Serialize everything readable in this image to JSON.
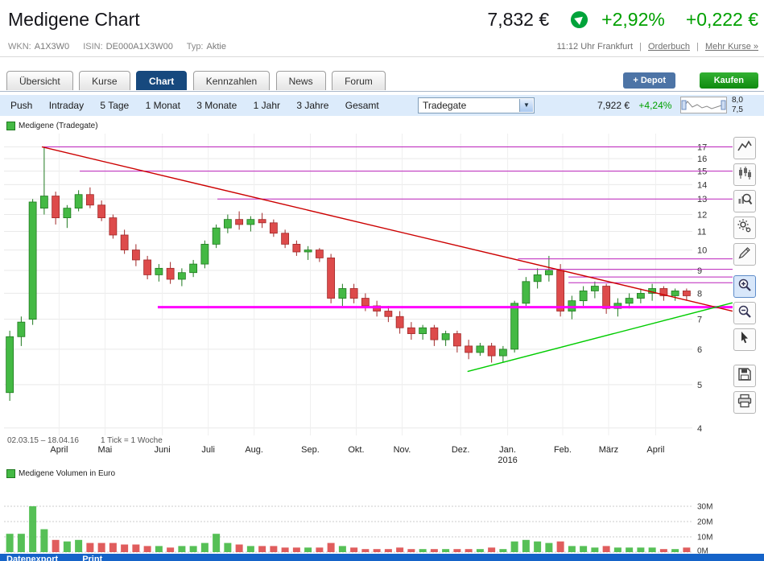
{
  "header": {
    "title": "Medigene Chart",
    "price": "7,832 €",
    "change_pct": "+2,92%",
    "change_abs": "+0,222 €",
    "wkn_label": "WKN:",
    "wkn_value": "A1X3W0",
    "isin_label": "ISIN:",
    "isin_value": "DE000A1X3W00",
    "typ_label": "Typ:",
    "typ_value": "Aktie",
    "time": "11:12 Uhr Frankfurt",
    "separator": "|",
    "orderbuch_link": "Orderbuch",
    "mehr_kurse_link": "Mehr Kurse »"
  },
  "tabs": {
    "items": [
      {
        "label": "Übersicht",
        "active": false
      },
      {
        "label": "Kurse",
        "active": false
      },
      {
        "label": "Chart",
        "active": true
      },
      {
        "label": "Kennzahlen",
        "active": false
      },
      {
        "label": "News",
        "active": false
      },
      {
        "label": "Forum",
        "active": false
      }
    ],
    "depot_label": "+ Depot",
    "kaufen_label": "Kaufen"
  },
  "period": {
    "items": [
      "Push",
      "Intraday",
      "5 Tage",
      "1 Monat",
      "3 Monate",
      "1 Jahr",
      "3 Jahre",
      "Gesamt"
    ],
    "exchange_selected": "Tradegate",
    "quote_price": "7,922 €",
    "quote_change": "+4,24%",
    "range_high": "8,0",
    "range_low": "7,5"
  },
  "chart": {
    "legend": "Medigene (Tradegate)"
  },
  "volume": {
    "legend": "Medigene Volumen in Euro",
    "yticks": [
      {
        "v": 0,
        "label": "0M"
      },
      {
        "v": 10,
        "label": "10M"
      },
      {
        "v": 20,
        "label": "20M"
      },
      {
        "v": 30,
        "label": "30M"
      }
    ]
  },
  "chart_data": {
    "type": "candlestick",
    "title": "Medigene (Tradegate)",
    "scale": "log",
    "period": "1 Tick = 1 Woche",
    "range_text": "02.03.15 – 18.04.16",
    "tick_text": "1 Tick = 1 Woche",
    "y_domain": [
      3.85,
      18.2
    ],
    "y_ticks": [
      4,
      5,
      6,
      7,
      8,
      9,
      10,
      11,
      12,
      13,
      14,
      15,
      16,
      17
    ],
    "x_labels": [
      {
        "t": "April",
        "i": 4.8
      },
      {
        "t": "Mai",
        "i": 8.8
      },
      {
        "t": "Juni",
        "i": 13.8
      },
      {
        "t": "Juli",
        "i": 17.8
      },
      {
        "t": "Aug.",
        "i": 21.8
      },
      {
        "t": "Sep.",
        "i": 26.7
      },
      {
        "t": "Okt.",
        "i": 30.7
      },
      {
        "t": "Nov.",
        "i": 34.7
      },
      {
        "t": "Dez.",
        "i": 39.8
      },
      {
        "t": "Jan.",
        "i": 43.9,
        "sub": "2016"
      },
      {
        "t": "Feb.",
        "i": 48.7
      },
      {
        "t": "März",
        "i": 52.7
      },
      {
        "t": "April",
        "i": 56.8
      }
    ],
    "candles": [
      [
        4.8,
        6.6,
        4.6,
        6.4,
        12
      ],
      [
        6.4,
        7.1,
        6.1,
        6.9,
        12
      ],
      [
        7.0,
        13.0,
        6.8,
        12.8,
        30
      ],
      [
        12.4,
        17.0,
        12.0,
        13.2,
        15
      ],
      [
        13.2,
        13.5,
        11.4,
        11.8,
        8
      ],
      [
        11.8,
        12.6,
        11.2,
        12.4,
        7
      ],
      [
        12.4,
        13.6,
        12.2,
        13.3,
        8
      ],
      [
        13.3,
        13.8,
        12.4,
        12.6,
        6
      ],
      [
        12.6,
        12.9,
        11.6,
        11.8,
        6
      ],
      [
        11.8,
        12.0,
        10.6,
        10.8,
        6
      ],
      [
        10.8,
        11.1,
        9.8,
        10.0,
        5
      ],
      [
        10.0,
        10.3,
        9.2,
        9.5,
        5
      ],
      [
        9.5,
        9.7,
        8.6,
        8.8,
        4
      ],
      [
        8.8,
        9.3,
        8.5,
        9.1,
        4
      ],
      [
        9.1,
        9.4,
        8.4,
        8.6,
        3
      ],
      [
        8.6,
        9.1,
        8.3,
        8.9,
        4
      ],
      [
        8.9,
        9.5,
        8.7,
        9.3,
        4
      ],
      [
        9.3,
        10.5,
        9.1,
        10.3,
        6
      ],
      [
        10.3,
        11.4,
        10.1,
        11.2,
        12
      ],
      [
        11.2,
        12.0,
        10.9,
        11.7,
        6
      ],
      [
        11.7,
        12.2,
        11.1,
        11.4,
        5
      ],
      [
        11.4,
        11.9,
        11.0,
        11.7,
        4
      ],
      [
        11.7,
        12.1,
        11.2,
        11.5,
        4
      ],
      [
        11.5,
        11.7,
        10.7,
        10.9,
        4
      ],
      [
        10.9,
        11.1,
        10.1,
        10.3,
        3
      ],
      [
        10.3,
        10.5,
        9.7,
        9.9,
        3
      ],
      [
        9.9,
        10.2,
        9.5,
        10.0,
        3
      ],
      [
        10.0,
        10.1,
        9.4,
        9.6,
        3
      ],
      [
        9.6,
        9.8,
        7.6,
        7.8,
        6
      ],
      [
        7.8,
        8.4,
        7.5,
        8.2,
        4
      ],
      [
        8.2,
        8.4,
        7.6,
        7.8,
        3
      ],
      [
        7.8,
        8.0,
        7.3,
        7.5,
        2
      ],
      [
        7.5,
        7.7,
        7.1,
        7.3,
        2
      ],
      [
        7.3,
        7.5,
        6.9,
        7.1,
        2
      ],
      [
        7.1,
        7.3,
        6.5,
        6.7,
        3
      ],
      [
        6.7,
        6.9,
        6.3,
        6.5,
        2
      ],
      [
        6.5,
        6.8,
        6.3,
        6.7,
        2
      ],
      [
        6.7,
        6.8,
        6.1,
        6.3,
        2
      ],
      [
        6.3,
        6.6,
        6.1,
        6.5,
        2
      ],
      [
        6.5,
        6.6,
        5.9,
        6.1,
        2
      ],
      [
        6.1,
        6.3,
        5.7,
        5.9,
        2
      ],
      [
        5.9,
        6.2,
        5.8,
        6.1,
        2
      ],
      [
        6.1,
        6.2,
        5.6,
        5.8,
        3
      ],
      [
        5.8,
        6.1,
        5.6,
        6.0,
        2
      ],
      [
        6.0,
        7.7,
        5.9,
        7.6,
        7
      ],
      [
        7.6,
        8.7,
        7.5,
        8.5,
        8
      ],
      [
        8.5,
        9.1,
        8.2,
        8.8,
        7
      ],
      [
        8.8,
        9.7,
        8.5,
        9.0,
        6
      ],
      [
        9.0,
        9.3,
        7.1,
        7.3,
        7
      ],
      [
        7.3,
        7.9,
        7.0,
        7.7,
        4
      ],
      [
        7.7,
        8.3,
        7.5,
        8.1,
        4
      ],
      [
        8.1,
        8.5,
        7.8,
        8.3,
        3
      ],
      [
        8.3,
        8.4,
        7.2,
        7.4,
        4
      ],
      [
        7.4,
        7.8,
        7.1,
        7.6,
        3
      ],
      [
        7.6,
        8.0,
        7.4,
        7.8,
        3
      ],
      [
        7.8,
        8.2,
        7.6,
        8.0,
        3
      ],
      [
        8.0,
        8.4,
        7.7,
        8.2,
        3
      ],
      [
        8.2,
        8.3,
        7.7,
        7.9,
        2
      ],
      [
        7.9,
        8.2,
        7.7,
        8.1,
        2
      ],
      [
        8.1,
        8.2,
        7.7,
        7.9,
        3
      ]
    ],
    "volume_unit": "M",
    "support_resistance_lines": [
      {
        "price": 17.0,
        "from_idx": 3.3,
        "thick": false
      },
      {
        "price": 15.0,
        "from_idx": 6.6,
        "thick": false
      },
      {
        "price": 13.0,
        "from_idx": 18.6,
        "thick": false
      },
      {
        "price": 9.55,
        "from_idx": 44.8,
        "thick": false
      },
      {
        "price": 9.05,
        "from_idx": 44.8,
        "thick": false
      },
      {
        "price": 8.7,
        "from_idx": 49.2,
        "thick": false
      },
      {
        "price": 8.45,
        "from_idx": 49.2,
        "thick": false
      },
      {
        "price": 7.45,
        "from_idx": 13.4,
        "thick": true
      }
    ],
    "trendlines": [
      {
        "from_idx": 3.3,
        "from_price": 17.0,
        "to_idx": 63.5,
        "to_price": 7.3,
        "color": "#cc0000"
      },
      {
        "from_idx": 40.4,
        "from_price": 5.35,
        "to_idx": 63.5,
        "to_price": 7.62,
        "color": "#00cc00"
      }
    ],
    "colors": {
      "up": "#44b944",
      "up_border": "#1f7a1f",
      "down": "#dd4b4b",
      "down_border": "#a02828",
      "line_thin": "#bb22bb",
      "line_thick": "#ff00ff"
    }
  },
  "toolbar_icons": [
    "line-chart",
    "candlestick-chart",
    "chart-magnifier",
    "settings-gears",
    "draw-tools",
    "zoom-in",
    "zoom-out",
    "pointer",
    "save",
    "print"
  ],
  "bottom_bar": {
    "items": [
      "Datenexport",
      "Print"
    ]
  }
}
